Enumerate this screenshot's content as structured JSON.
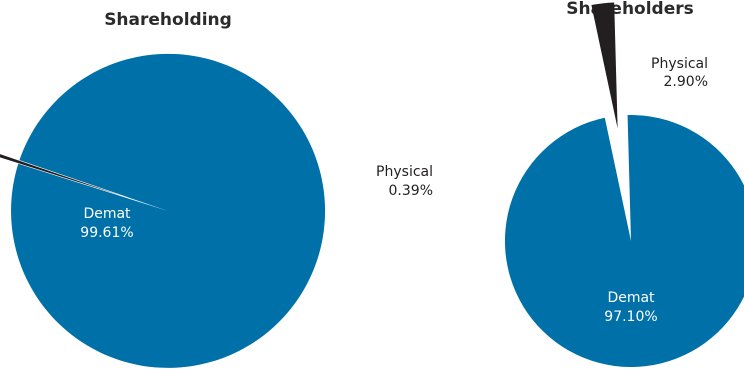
{
  "colors": {
    "demat": "#0070a8",
    "physical": "#231f20",
    "inside_label": "#ffffff",
    "outside_label": "#231f20",
    "title": "#2b2b2b"
  },
  "chart_data": [
    {
      "type": "pie",
      "title": "Shareholding",
      "slices": [
        {
          "label": "Demat",
          "value_text": "99.61%",
          "value": 99.61,
          "exploded": false
        },
        {
          "label": "Physical",
          "value_text": "0.39%",
          "value": 0.39,
          "exploded": true
        }
      ]
    },
    {
      "type": "pie",
      "title": "Shareholders",
      "slices": [
        {
          "label": "Demat",
          "value_text": "97.10%",
          "value": 97.1,
          "exploded": false
        },
        {
          "label": "Physical",
          "value_text": "2.90%",
          "value": 2.9,
          "exploded": true
        }
      ]
    }
  ]
}
